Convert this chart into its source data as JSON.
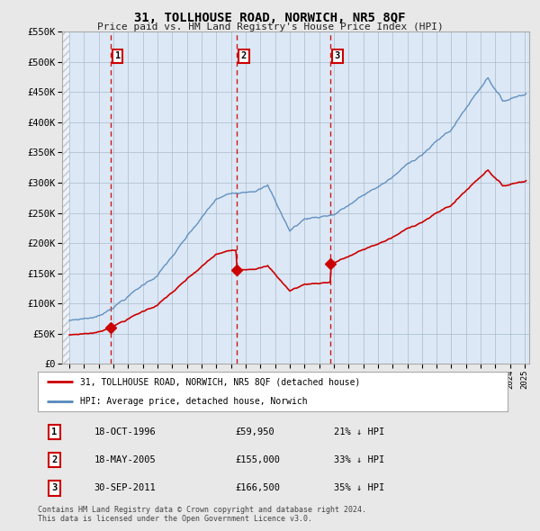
{
  "title": "31, TOLLHOUSE ROAD, NORWICH, NR5 8QF",
  "subtitle": "Price paid vs. HM Land Registry's House Price Index (HPI)",
  "ylim": [
    0,
    550000
  ],
  "yticks": [
    0,
    50000,
    100000,
    150000,
    200000,
    250000,
    300000,
    350000,
    400000,
    450000,
    500000,
    550000
  ],
  "background_color": "#e8e8e8",
  "plot_bg_color": "#dce8f5",
  "purchases": [
    {
      "date_num": 1996.79,
      "price": 59950,
      "label": "1"
    },
    {
      "date_num": 2005.38,
      "price": 155000,
      "label": "2"
    },
    {
      "date_num": 2011.75,
      "price": 166500,
      "label": "3"
    }
  ],
  "vlines": [
    1996.79,
    2005.38,
    2011.75
  ],
  "legend_line1": "31, TOLLHOUSE ROAD, NORWICH, NR5 8QF (detached house)",
  "legend_line2": "HPI: Average price, detached house, Norwich",
  "table": [
    [
      "1",
      "18-OCT-1996",
      "£59,950",
      "21% ↓ HPI"
    ],
    [
      "2",
      "18-MAY-2005",
      "£155,000",
      "33% ↓ HPI"
    ],
    [
      "3",
      "30-SEP-2011",
      "£166,500",
      "35% ↓ HPI"
    ]
  ],
  "footnote": "Contains HM Land Registry data © Crown copyright and database right 2024.\nThis data is licensed under the Open Government Licence v3.0.",
  "hpi_color": "#5588bb",
  "price_color": "#cc0000",
  "vline_color": "#cc0000",
  "marker_color": "#cc0000",
  "grid_color": "#aabbcc",
  "label_box_color": "#cc0000"
}
